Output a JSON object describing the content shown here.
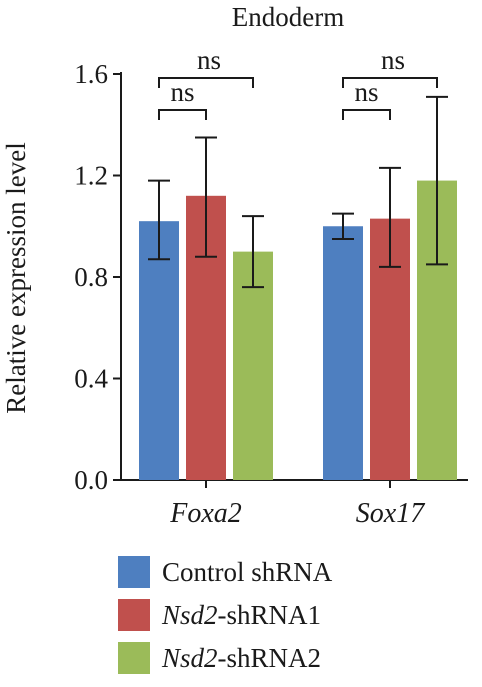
{
  "chart_data": {
    "type": "bar",
    "title": "Endoderm",
    "ylabel": "Relative expression level",
    "ylim": [
      0,
      1.6
    ],
    "yticks": [
      "0.0",
      "0.4",
      "0.8",
      "1.2",
      "1.6"
    ],
    "categories": [
      "Foxa2",
      "Sox17"
    ],
    "series": [
      {
        "name": "Control shRNA",
        "name_italic": "",
        "name_rest": "Control shRNA",
        "color": "#4e7fc0",
        "values": [
          1.02,
          1.0
        ],
        "err_low": [
          0.87,
          0.95
        ],
        "err_high": [
          1.18,
          1.05
        ]
      },
      {
        "name": "Nsd2-shRNA1",
        "name_italic": "Nsd2",
        "name_rest": "-shRNA1",
        "color": "#c0504d",
        "values": [
          1.12,
          1.03
        ],
        "err_low": [
          0.88,
          0.84
        ],
        "err_high": [
          1.35,
          1.23
        ]
      },
      {
        "name": "Nsd2-shRNA2",
        "name_italic": "Nsd2",
        "name_rest": "-shRNA2",
        "color": "#9bbb59",
        "values": [
          0.9,
          1.18
        ],
        "err_low": [
          0.76,
          0.85
        ],
        "err_high": [
          1.04,
          1.51
        ]
      }
    ],
    "annotations": [
      {
        "text": "ns",
        "category": 0,
        "from": 0,
        "to": 1,
        "level": 1
      },
      {
        "text": "ns",
        "category": 0,
        "from": 0,
        "to": 2,
        "level": 2
      },
      {
        "text": "ns",
        "category": 1,
        "from": 0,
        "to": 1,
        "level": 1
      },
      {
        "text": "ns",
        "category": 1,
        "from": 0,
        "to": 2,
        "level": 2
      }
    ],
    "legend_position": "bottom",
    "grid": false
  }
}
